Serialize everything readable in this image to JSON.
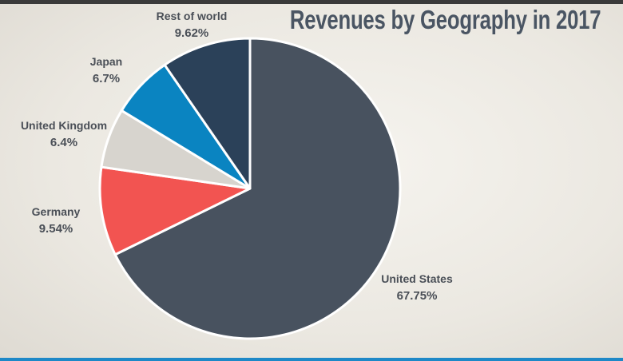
{
  "chart_data": {
    "type": "pie",
    "title": "Revenues by Geography in 2017",
    "slices": [
      {
        "name": "United States",
        "label": "67.75%",
        "value": 67.75,
        "color": "#48525f"
      },
      {
        "name": "Germany",
        "label": "9.54%",
        "value": 9.54,
        "color": "#f25451"
      },
      {
        "name": "United Kingdom",
        "label": "6.4%",
        "value": 6.4,
        "color": "#d7d4ce"
      },
      {
        "name": "Japan",
        "label": "6.7%",
        "value": 6.7,
        "color": "#0a84c1"
      },
      {
        "name": "Rest of world",
        "label": "9.62%",
        "value": 9.62,
        "color": "#2b4159"
      }
    ],
    "start_angle_deg": 0,
    "direction": "clockwise",
    "slice_border_color": "#ffffff"
  },
  "colors": {
    "top_bar": "#3a3a3a",
    "bottom_bar": "#1e88c7",
    "title_text": "#4a5563",
    "label_text": "#4a4f57"
  }
}
